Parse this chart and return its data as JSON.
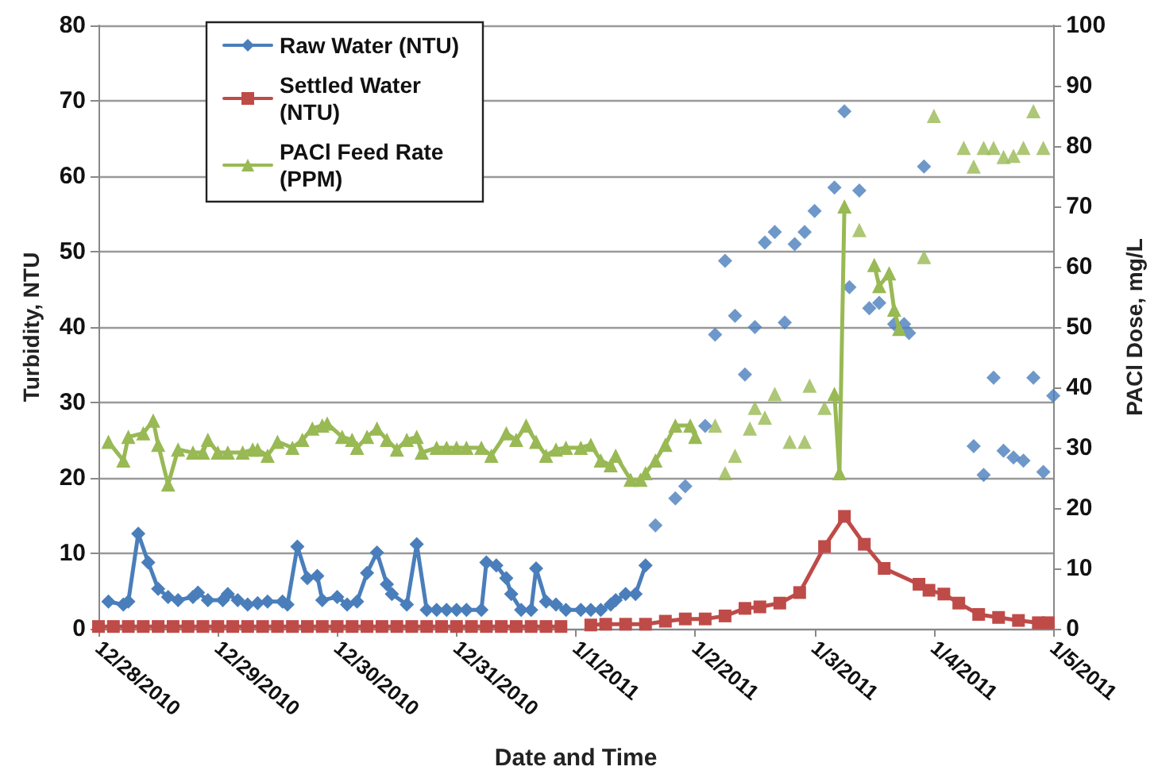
{
  "chart_data": {
    "type": "line",
    "xlabel": "Date and Time",
    "ylabel": "Turbidity, NTU",
    "y2label": "PACl Dose, mg/L",
    "xlim": [
      "2010-12-28",
      "2011-01-05"
    ],
    "xticks": [
      {
        "value": "2010-12-28",
        "label": "12/28/2010"
      },
      {
        "value": "2010-12-29",
        "label": "12/29/2010"
      },
      {
        "value": "2010-12-30",
        "label": "12/30/2010"
      },
      {
        "value": "2010-12-31",
        "label": "12/31/2010"
      },
      {
        "value": "2011-01-01",
        "label": "1/1/2011"
      },
      {
        "value": "2011-01-02",
        "label": "1/2/2011"
      },
      {
        "value": "2011-01-03",
        "label": "1/3/2011"
      },
      {
        "value": "2011-01-04",
        "label": "1/4/2011"
      },
      {
        "value": "2011-01-05",
        "label": "1/5/2011"
      }
    ],
    "ylim": [
      0,
      80
    ],
    "yticks": [
      0,
      10,
      20,
      30,
      40,
      50,
      60,
      70,
      80
    ],
    "y2lim": [
      0,
      100
    ],
    "y2ticks": [
      0,
      10,
      20,
      30,
      40,
      50,
      60,
      70,
      80,
      90,
      100
    ],
    "grid": "y",
    "legend": "top left",
    "series": [
      {
        "name": "Raw Water (NTU)",
        "color": "#4a7ebb",
        "marker": "diamond",
        "x": [
          "2010-12-28T02:00",
          "2010-12-28T05:00",
          "2010-12-28T06:00",
          "2010-12-28T08:00",
          "2010-12-28T10:00",
          "2010-12-28T12:00",
          "2010-12-28T14:00",
          "2010-12-28T16:00",
          "2010-12-28T19:00",
          "2010-12-28T20:00",
          "2010-12-28T22:00",
          "2010-12-29T01:00",
          "2010-12-29T02:00",
          "2010-12-29T04:00",
          "2010-12-29T06:00",
          "2010-12-29T08:00",
          "2010-12-29T10:00",
          "2010-12-29T13:00",
          "2010-12-29T14:00",
          "2010-12-29T16:00",
          "2010-12-29T18:00",
          "2010-12-29T20:00",
          "2010-12-29T21:00",
          "2010-12-30T00:00",
          "2010-12-30T02:00",
          "2010-12-30T04:00",
          "2010-12-30T06:00",
          "2010-12-30T08:00",
          "2010-12-30T10:00",
          "2010-12-30T11:00",
          "2010-12-30T14:00",
          "2010-12-30T16:00",
          "2010-12-30T18:00",
          "2010-12-30T20:00",
          "2010-12-30T22:00",
          "2010-12-31T00:00",
          "2010-12-31T02:00",
          "2010-12-31T05:00",
          "2010-12-31T06:00",
          "2010-12-31T08:00",
          "2010-12-31T10:00",
          "2010-12-31T11:00",
          "2010-12-31T13:00",
          "2010-12-31T15:00",
          "2010-12-31T16:00",
          "2010-12-31T18:00",
          "2010-12-31T20:00",
          "2010-12-31T22:00",
          "2011-01-01T01:00",
          "2011-01-01T03:00",
          "2011-01-01T05:00",
          "2011-01-01T07:00",
          "2011-01-01T08:00",
          "2011-01-01T10:00",
          "2011-01-01T12:00",
          "2011-01-01T14:00"
        ],
        "values": [
          3.6,
          3.2,
          3.6,
          12.6,
          8.8,
          5.3,
          4.2,
          3.8,
          4.2,
          4.8,
          3.8,
          3.8,
          4.6,
          3.8,
          3.2,
          3.4,
          3.6,
          3.6,
          3.2,
          10.9,
          6.7,
          7.0,
          3.8,
          4.2,
          3.2,
          3.6,
          7.4,
          10.1,
          5.9,
          4.6,
          3.2,
          11.2,
          2.5,
          2.5,
          2.5,
          2.5,
          2.5,
          2.5,
          8.8,
          8.4,
          6.7,
          4.6,
          2.5,
          2.5,
          8.0,
          3.6,
          3.2,
          2.5,
          2.5,
          2.5,
          2.5,
          3.2,
          3.8,
          4.6,
          4.6,
          8.4
        ]
      },
      {
        "type": "scatter",
        "color": "#4a7ebb",
        "marker": "diamond",
        "x": [
          "2011-01-01T16:00",
          "2011-01-01T20:00",
          "2011-01-01T22:00",
          "2011-01-02T02:00",
          "2011-01-02T04:00",
          "2011-01-02T06:00",
          "2011-01-02T08:00",
          "2011-01-02T10:00",
          "2011-01-02T12:00",
          "2011-01-02T14:00",
          "2011-01-02T16:00",
          "2011-01-02T18:00",
          "2011-01-02T20:00",
          "2011-01-02T22:00",
          "2011-01-03T00:00",
          "2011-01-03T04:00",
          "2011-01-03T06:00",
          "2011-01-03T07:00",
          "2011-01-03T09:00",
          "2011-01-03T11:00",
          "2011-01-03T13:00",
          "2011-01-03T16:00",
          "2011-01-03T18:00",
          "2011-01-03T19:00",
          "2011-01-03T22:00",
          "2011-01-04T08:00",
          "2011-01-04T10:00",
          "2011-01-04T12:00",
          "2011-01-04T14:00",
          "2011-01-04T16:00",
          "2011-01-04T18:00",
          "2011-01-04T20:00",
          "2011-01-04T22:00",
          "2011-01-05T00:00"
        ],
        "values": [
          13.7,
          17.3,
          18.9,
          26.9,
          39.0,
          48.8,
          41.5,
          33.7,
          40.0,
          51.2,
          52.6,
          40.6,
          51.0,
          52.6,
          55.4,
          58.5,
          68.6,
          45.3,
          58.1,
          42.5,
          43.2,
          40.4,
          40.4,
          39.2,
          61.3,
          24.2,
          20.4,
          33.3,
          23.6,
          22.7,
          22.3,
          33.3,
          20.8,
          30.9
        ]
      },
      {
        "name": "Settled Water (NTU)",
        "color": "#be4b48",
        "marker": "square",
        "x": [
          "2010-12-28T00:00",
          "2010-12-28T03:00",
          "2010-12-28T06:00",
          "2010-12-28T09:00",
          "2010-12-28T12:00",
          "2010-12-28T15:00",
          "2010-12-28T18:00",
          "2010-12-28T21:00",
          "2010-12-29T00:00",
          "2010-12-29T03:00",
          "2010-12-29T06:00",
          "2010-12-29T09:00",
          "2010-12-29T12:00",
          "2010-12-29T15:00",
          "2010-12-29T18:00",
          "2010-12-29T21:00",
          "2010-12-30T00:00",
          "2010-12-30T03:00",
          "2010-12-30T06:00",
          "2010-12-30T09:00",
          "2010-12-30T12:00",
          "2010-12-30T15:00",
          "2010-12-30T18:00",
          "2010-12-30T21:00",
          "2010-12-31T00:00",
          "2010-12-31T03:00",
          "2010-12-31T06:00",
          "2010-12-31T09:00",
          "2010-12-31T12:00",
          "2010-12-31T15:00",
          "2010-12-31T18:00",
          "2010-12-31T21:00",
          "2011-01-01T00:00",
          "2011-01-01T03:00",
          "2011-01-01T06:00",
          "2011-01-01T10:00",
          "2011-01-01T14:00",
          "2011-01-01T18:00",
          "2011-01-01T22:00",
          "2011-01-02T02:00",
          "2011-01-02T06:00",
          "2011-01-02T10:00",
          "2011-01-02T13:00",
          "2011-01-02T17:00",
          "2011-01-02T21:00",
          "2011-01-03T02:00",
          "2011-01-03T06:00",
          "2011-01-03T10:00",
          "2011-01-03T14:00",
          "2011-01-03T21:00",
          "2011-01-03T23:00",
          "2011-01-04T02:00",
          "2011-01-04T05:00",
          "2011-01-04T09:00",
          "2011-01-04T13:00",
          "2011-01-04T17:00",
          "2011-01-04T21:00",
          "2011-01-04T23:00"
        ],
        "values": [
          0.3,
          0.3,
          0.3,
          0.3,
          0.3,
          0.3,
          0.3,
          0.3,
          0.3,
          0.3,
          0.3,
          0.3,
          0.3,
          0.3,
          0.3,
          0.3,
          0.3,
          0.3,
          0.3,
          0.3,
          0.3,
          0.3,
          0.3,
          0.3,
          0.3,
          0.3,
          0.3,
          0.3,
          0.3,
          0.3,
          0.3,
          0.3,
          null,
          0.5,
          0.6,
          0.6,
          0.6,
          1.0,
          1.3,
          1.3,
          1.7,
          2.7,
          2.9,
          3.4,
          4.8,
          10.9,
          14.9,
          11.2,
          8.0,
          5.9,
          5.1,
          4.6,
          3.4,
          1.9,
          1.5,
          1.1,
          0.8,
          0.8
        ]
      },
      {
        "name": "PACl Feed Rate (PPM)",
        "color": "#98b954",
        "marker": "triangle",
        "axis": "y2",
        "x": [
          "2010-12-28T02:00",
          "2010-12-28T05:00",
          "2010-12-28T06:00",
          "2010-12-28T09:00",
          "2010-12-28T11:00",
          "2010-12-28T12:00",
          "2010-12-28T14:00",
          "2010-12-28T16:00",
          "2010-12-28T19:00",
          "2010-12-28T21:00",
          "2010-12-28T22:00",
          "2010-12-29T00:00",
          "2010-12-29T02:00",
          "2010-12-29T05:00",
          "2010-12-29T07:00",
          "2010-12-29T08:00",
          "2010-12-29T10:00",
          "2010-12-29T12:00",
          "2010-12-29T15:00",
          "2010-12-29T17:00",
          "2010-12-29T19:00",
          "2010-12-29T21:00",
          "2010-12-29T22:00",
          "2010-12-30T01:00",
          "2010-12-30T03:00",
          "2010-12-30T04:00",
          "2010-12-30T06:00",
          "2010-12-30T08:00",
          "2010-12-30T10:00",
          "2010-12-30T12:00",
          "2010-12-30T14:00",
          "2010-12-30T16:00",
          "2010-12-30T17:00",
          "2010-12-30T20:00",
          "2010-12-30T22:00",
          "2010-12-31T00:00",
          "2010-12-31T02:00",
          "2010-12-31T05:00",
          "2010-12-31T07:00",
          "2010-12-31T10:00",
          "2010-12-31T12:00",
          "2010-12-31T14:00",
          "2010-12-31T16:00",
          "2010-12-31T18:00",
          "2010-12-31T20:00",
          "2010-12-31T22:00",
          "2011-01-01T01:00",
          "2011-01-01T03:00",
          "2011-01-01T05:00",
          "2011-01-01T07:00",
          "2011-01-01T08:00",
          "2011-01-01T11:00",
          "2011-01-01T13:00",
          "2011-01-01T14:00",
          "2011-01-01T16:00",
          "2011-01-01T18:00",
          "2011-01-01T20:00",
          "2011-01-01T23:00",
          "2011-01-02T00:00"
        ],
        "values": [
          31.0,
          27.9,
          31.8,
          32.4,
          34.5,
          30.5,
          23.9,
          29.7,
          29.2,
          29.2,
          31.3,
          29.2,
          29.2,
          29.2,
          29.7,
          29.7,
          28.7,
          31.0,
          30.0,
          31.3,
          33.2,
          33.7,
          34.0,
          31.8,
          31.3,
          30.0,
          31.8,
          33.2,
          31.3,
          29.7,
          31.3,
          31.8,
          29.2,
          30.0,
          30.0,
          30.0,
          30.0,
          30.0,
          28.7,
          32.4,
          31.3,
          33.7,
          31.0,
          28.7,
          29.7,
          30.0,
          30.0,
          30.5,
          27.9,
          27.1,
          28.7,
          24.7,
          24.7,
          25.8,
          27.9,
          30.5,
          33.7,
          33.7,
          31.8
        ]
      },
      {
        "type": "scatter",
        "color": "#98b954",
        "marker": "triangle",
        "axis": "y2",
        "x": [
          "2011-01-02T04:00",
          "2011-01-02T06:00",
          "2011-01-02T08:00",
          "2011-01-02T11:00",
          "2011-01-02T12:00",
          "2011-01-02T14:00",
          "2011-01-02T16:00",
          "2011-01-02T19:00",
          "2011-01-02T22:00",
          "2011-01-02T23:00",
          "2011-01-03T02:00",
          "2011-01-03T09:00",
          "2011-01-03T22:00",
          "2011-01-04T00:00",
          "2011-01-04T06:00",
          "2011-01-04T08:00",
          "2011-01-04T10:00",
          "2011-01-04T12:00",
          "2011-01-04T14:00",
          "2011-01-04T16:00",
          "2011-01-04T18:00",
          "2011-01-04T20:00",
          "2011-01-04T22:00"
        ],
        "values": [
          33.7,
          25.8,
          28.7,
          33.2,
          36.6,
          35.0,
          38.9,
          31.0,
          31.0,
          40.3,
          36.6,
          66.1,
          61.6,
          85.0,
          79.7,
          76.6,
          79.7,
          79.7,
          78.2,
          78.4,
          79.7,
          85.8,
          79.7
        ]
      },
      {
        "color": "#98b954",
        "marker": "triangle",
        "axis": "y2",
        "x": [
          "2011-01-03T04:00",
          "2011-01-03T05:00",
          "2011-01-03T06:00"
        ],
        "values": [
          38.9,
          25.8,
          70.0
        ]
      },
      {
        "color": "#98b954",
        "marker": "triangle",
        "axis": "y2",
        "x": [
          "2011-01-03T12:00",
          "2011-01-03T13:00",
          "2011-01-03T15:00",
          "2011-01-03T16:00",
          "2011-01-03T17:00"
        ],
        "values": [
          60.3,
          56.8,
          58.9,
          52.9,
          49.7
        ]
      }
    ]
  }
}
